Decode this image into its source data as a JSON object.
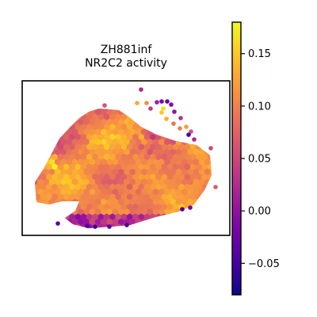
{
  "chart_data": {
    "type": "scatter",
    "subtype": "spatial-hexbin",
    "title_line1": "ZH881inf",
    "title_line2": "NR2C2 activity",
    "xlabel": "",
    "ylabel": "",
    "axes_ticks": "none",
    "grid": false,
    "colormap": "plasma",
    "colorbar": {
      "min": -0.08,
      "max": 0.18,
      "ticks": [
        -0.05,
        0.0,
        0.05,
        0.1,
        0.15
      ],
      "tick_labels": [
        "−0.05",
        "0.00",
        "0.05",
        "0.10",
        "0.15"
      ],
      "location": "right"
    },
    "value_distribution": {
      "typical_range": [
        0.07,
        0.15
      ],
      "low_outlier_region": "bottom edge and upper-right lobe edge",
      "high_spots": "left edge and center"
    }
  }
}
